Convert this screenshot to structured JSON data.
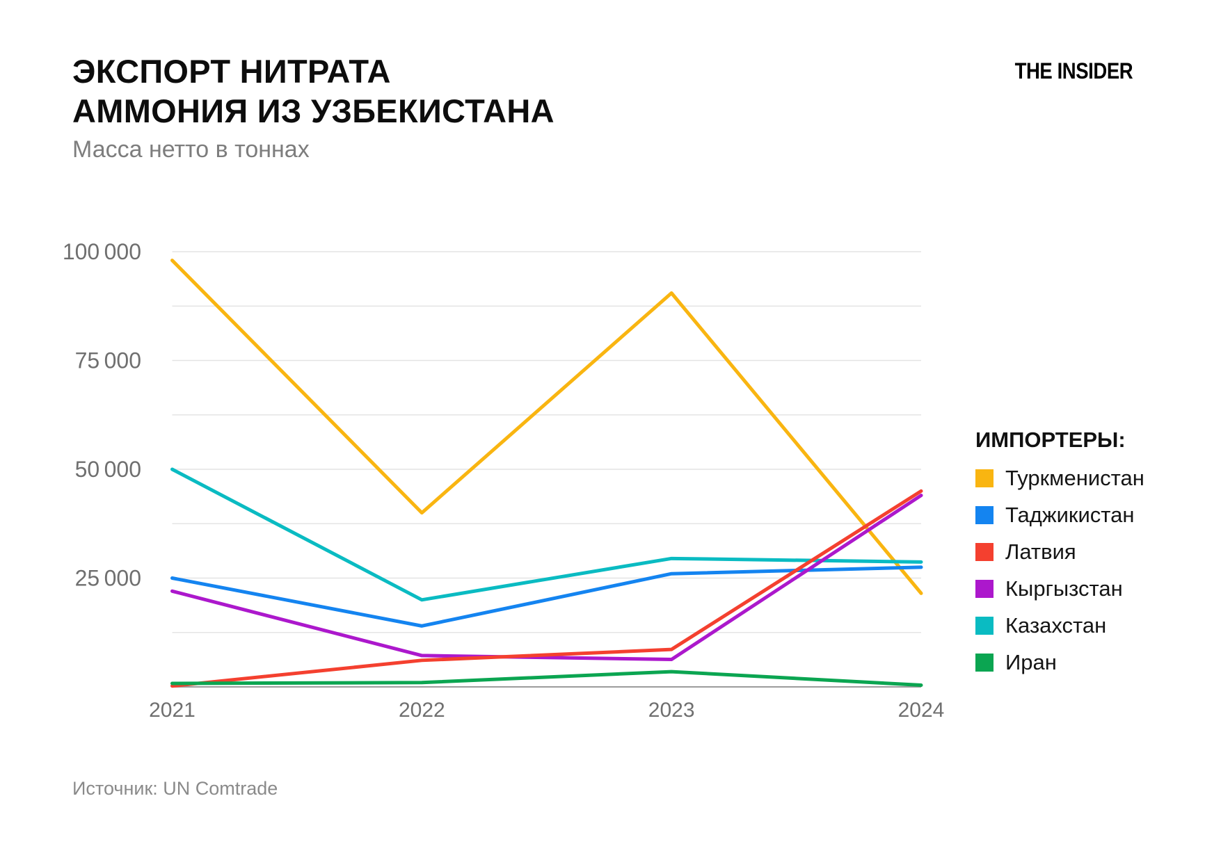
{
  "header": {
    "title_line1": "ЭКСПОРТ НИТРАТА",
    "title_line2": "АММОНИЯ ИЗ УЗБЕКИСТАНА",
    "subtitle": "Масса нетто в тоннах",
    "logo": "THE INSIDER"
  },
  "legend": {
    "header": "ИМПОРТЕРЫ:",
    "items": [
      {
        "label": "Туркменистан",
        "color": "#F9B511"
      },
      {
        "label": "Таджикистан",
        "color": "#1484F0"
      },
      {
        "label": "Латвия",
        "color": "#F4402F"
      },
      {
        "label": "Кыргызстан",
        "color": "#AC18CC"
      },
      {
        "label": "Казахстан",
        "color": "#0ABBC2"
      },
      {
        "label": "Иран",
        "color": "#0BA551"
      }
    ]
  },
  "source": "Источник: UN Comtrade",
  "chart_data": {
    "type": "line",
    "title": "ЭКСПОРТ НИТРАТА АММОНИЯ ИЗ УЗБЕКИСТАНА",
    "subtitle": "Масса нетто в тоннах",
    "xlabel": "",
    "ylabel": "Масса нетто в тоннах",
    "x": [
      2021,
      2022,
      2023,
      2024
    ],
    "x_labels": [
      "2021",
      "2022",
      "2023",
      "2024"
    ],
    "ylim": [
      0,
      100000
    ],
    "gridline_step": 12500,
    "grid": true,
    "legend_position": "right",
    "legend_title": "ИМПОРТЕРЫ:",
    "ytick_labels": [
      {
        "value": 100000,
        "label": "100 000"
      },
      {
        "value": 75000,
        "label": "75 000"
      },
      {
        "value": 50000,
        "label": "50 000"
      },
      {
        "value": 25000,
        "label": "25 000"
      }
    ],
    "series": [
      {
        "name": "Туркменистан",
        "color": "#F9B511",
        "values": [
          98000,
          40000,
          90500,
          21500
        ]
      },
      {
        "name": "Таджикистан",
        "color": "#1484F0",
        "values": [
          25000,
          14000,
          26000,
          27500
        ]
      },
      {
        "name": "Латвия",
        "color": "#F4402F",
        "values": [
          200,
          6100,
          8600,
          45000
        ]
      },
      {
        "name": "Кыргызстан",
        "color": "#AC18CC",
        "values": [
          22000,
          7200,
          6300,
          44000
        ]
      },
      {
        "name": "Казахстан",
        "color": "#0ABBC2",
        "values": [
          50000,
          20000,
          29500,
          28700
        ]
      },
      {
        "name": "Иран",
        "color": "#0BA551",
        "values": [
          800,
          1000,
          3500,
          400
        ]
      }
    ]
  }
}
